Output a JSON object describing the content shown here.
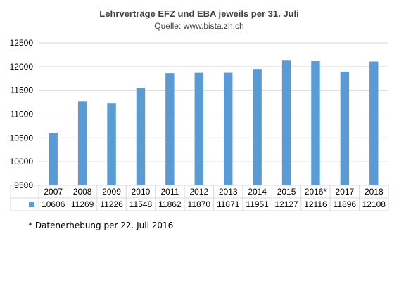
{
  "chart_data": {
    "type": "bar",
    "title": "Lehrverträge EFZ und EBA jeweils per 31. Juli",
    "subtitle": "Quelle: www.bista.zh.ch",
    "categories": [
      "2007",
      "2008",
      "2009",
      "2010",
      "2011",
      "2012",
      "2013",
      "2014",
      "2015",
      "2016*",
      "2017",
      "2018"
    ],
    "values": [
      10606,
      11269,
      11226,
      11548,
      11862,
      11870,
      11871,
      11951,
      12127,
      12116,
      11896,
      12108
    ],
    "ylim": [
      9500,
      12500
    ],
    "yticks": [
      9500,
      10000,
      10500,
      11000,
      11500,
      12000,
      12500
    ],
    "grid": true,
    "legend": "data-table",
    "bar_color": "#5b9bd5",
    "grid_color": "#d9d9d9",
    "xlabel": "",
    "ylabel": ""
  },
  "footnote": "* Datenerhebung per 22. Juli 2016"
}
